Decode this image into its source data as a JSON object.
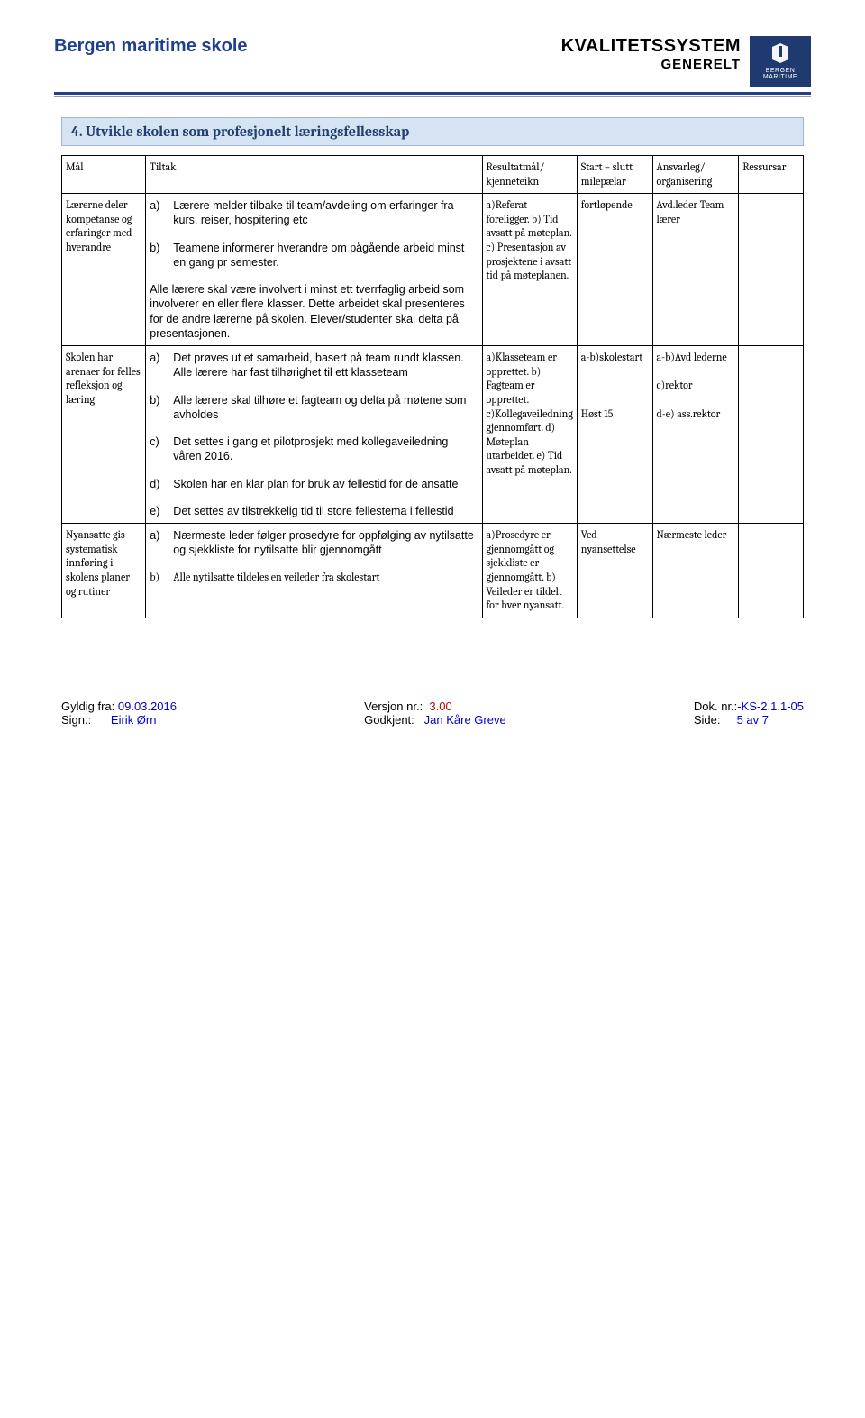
{
  "header": {
    "left": "Bergen maritime skole",
    "title": "KVALITETSSYSTEM",
    "subtitle": "GENERELT",
    "logo_line1": "BERGEN",
    "logo_line2": "MARITIME"
  },
  "section_heading": "4. Utvikle skolen som profesjonelt læringsfellesskap",
  "columns": {
    "c1": "Mål",
    "c2": "Tiltak",
    "c3": "Resultatmål/ kjenneteikn",
    "c4": "Start – slutt milepælar",
    "c5": "Ansvarleg/ organisering",
    "c6": "Ressursar"
  },
  "rows": [
    {
      "maal": "Lærerne deler kompetanse og erfaringer med hverandre",
      "tiltak_items": [
        {
          "m": "a)",
          "t": "Lærere melder tilbake til team/avdeling om erfaringer fra kurs, reiser, hospitering etc",
          "font": "verdana"
        },
        {
          "m": "b)",
          "t": "Teamene informerer hverandre om pågående arbeid minst en gang pr semester.",
          "font": "verdana"
        }
      ],
      "tiltak_para": "Alle lærere skal være involvert i minst ett tverrfaglig arbeid som involverer en eller flere klasser. Dette arbeidet skal presenteres for de andre lærerne på skolen. Elever/studenter skal delta på presentasjonen.",
      "tiltak_para_font": "verdana",
      "resultat": "a)Referat foreligger. b) Tid avsatt på møteplan. c) Presentasjon av prosjektene i avsatt tid på møteplanen.",
      "start": "fortløpende",
      "ansvar": "Avd.leder Team lærer",
      "ressurs": ""
    },
    {
      "maal": "Skolen har arenaer for felles refleksjon og læring",
      "tiltak_items": [
        {
          "m": "a)",
          "t": "Det prøves ut et samarbeid, basert på team rundt klassen.  Alle lærere har fast tilhørighet til ett klasseteam",
          "font": "verdana"
        },
        {
          "m": "b)",
          "t": "Alle lærere skal tilhøre et fagteam og delta på møtene som avholdes",
          "font": "verdana"
        },
        {
          "m": "c)",
          "t": "Det settes i gang et pilotprosjekt med kollegaveiledning våren 2016.",
          "font": "verdana"
        },
        {
          "m": "d)",
          "t": "Skolen har en klar plan for bruk av fellestid for de ansatte",
          "font": "verdana"
        },
        {
          "m": "e)",
          "t": "Det settes av tilstrekkelig tid til store fellestema i fellestid",
          "font": "verdana"
        }
      ],
      "resultat": "a)Klasseteam er opprettet. b) Fagteam er opprettet. c)Kollegaveiledning gjennomført.  d) Møteplan utarbeidet. e) Tid avsatt på møteplan.",
      "start": "a-b)skolestart\n\n\n\nHøst 15",
      "ansvar": "a-b)Avd lederne\n\nc)rektor\n\nd-e) ass.rektor",
      "ressurs": ""
    },
    {
      "maal": "Nyansatte gis systematisk innføring i skolens planer og rutiner",
      "maal_font": "verdana",
      "tiltak_items": [
        {
          "m": "a)",
          "t": "Nærmeste leder følger prosedyre for oppfølging av nytilsatte og sjekkliste for nytilsatte blir gjennomgått",
          "font": "verdana"
        },
        {
          "m": "b)",
          "t": "Alle nytilsatte tildeles en veileder fra skolestart",
          "font": "cambria"
        }
      ],
      "resultat": "a)Prosedyre er gjennomgått og sjekkliste er gjennomgått. b) Veileder er tildelt for hver nyansatt.",
      "start": "Ved nyansettelse",
      "ansvar": "Nærmeste leder",
      "ressurs": ""
    }
  ],
  "footer": {
    "gyldig_lbl": "Gyldig fra:",
    "gyldig_val": "09.03.2016",
    "sign_lbl": "Sign.:",
    "sign_val": "Eirik Ørn",
    "versjon_lbl": "Versjon nr.:",
    "versjon_val": "3.00",
    "godkjent_lbl": "Godkjent:",
    "godkjent_val": "Jan Kåre Greve",
    "dok_lbl": "Dok. nr.:",
    "dok_val": "-KS-2.1.1-05",
    "side_lbl": "Side:",
    "side_val": "5 av 7"
  },
  "colors": {
    "brand_blue": "#1f3f8f",
    "logo_bg": "#1e3a6e",
    "heading_bg": "#d6e3f2",
    "heading_border": "#9fb8d8",
    "link_blue": "#0000cc",
    "red": "#c00000"
  }
}
